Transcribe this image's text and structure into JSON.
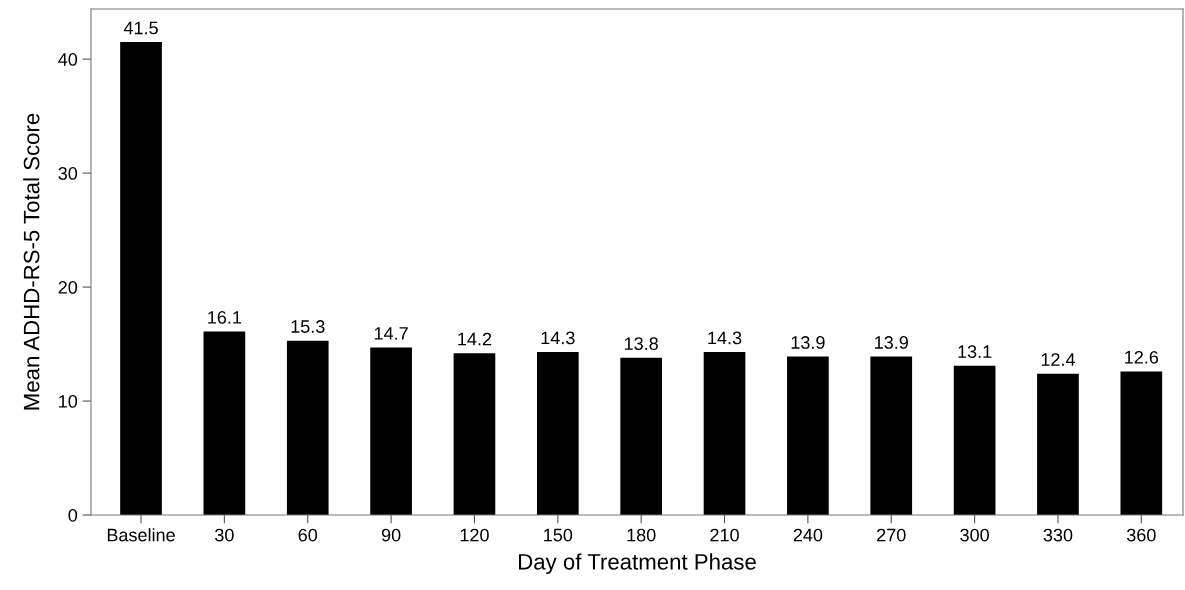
{
  "chart_data": {
    "type": "bar",
    "xlabel": "Day of Treatment Phase",
    "ylabel": "Mean ADHD-RS-5 Total Score",
    "categories": [
      "Baseline",
      "30",
      "60",
      "90",
      "120",
      "150",
      "180",
      "210",
      "240",
      "270",
      "300",
      "330",
      "360"
    ],
    "values": [
      41.5,
      16.1,
      15.3,
      14.7,
      14.2,
      14.3,
      13.8,
      14.3,
      13.9,
      13.9,
      13.1,
      12.4,
      12.6
    ],
    "color": "#000000",
    "ylim": [
      0,
      44.4
    ],
    "yticks": [
      0,
      10,
      20,
      30,
      40
    ],
    "data_labels": true,
    "grid": false,
    "legend": false
  }
}
